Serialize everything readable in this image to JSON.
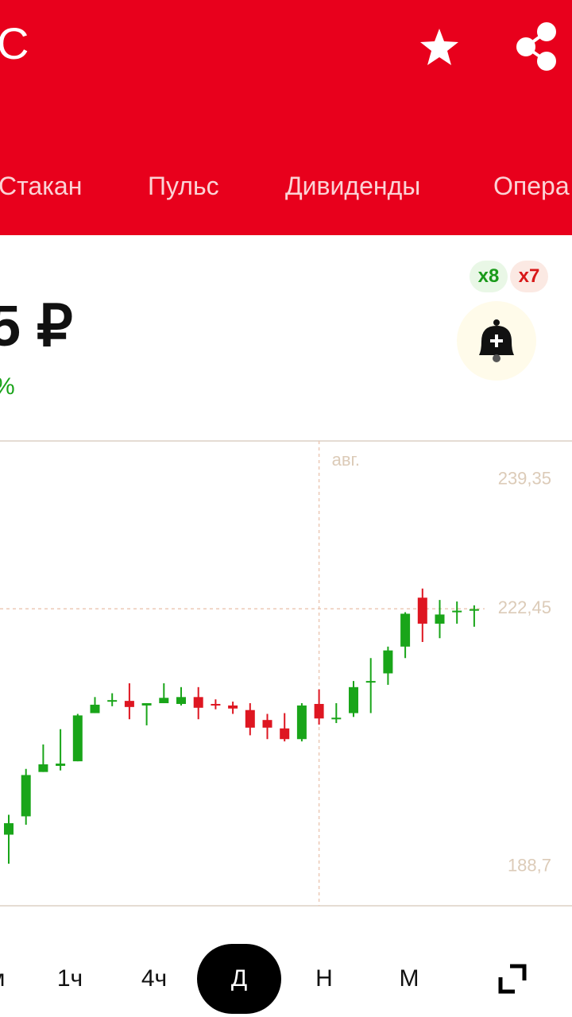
{
  "header": {
    "title": "С"
  },
  "tabs": [
    "Стакан",
    "Пульс",
    "Дивиденды",
    "Опера"
  ],
  "quote": {
    "price": "5 ₽",
    "change": "%"
  },
  "badges": [
    "x8",
    "x7"
  ],
  "chart_data": {
    "type": "candlestick",
    "categories": [
      null,
      null,
      null,
      null,
      null,
      null,
      null,
      null,
      null,
      null,
      null,
      null,
      null,
      null,
      null,
      null,
      null,
      null,
      "авг.",
      null,
      null,
      null,
      null,
      null,
      null,
      null,
      null,
      null
    ],
    "open": [
      192.9,
      195.3,
      201.1,
      201.9,
      202.5,
      208.8,
      210.4,
      210.4,
      209.8,
      210.1,
      210.0,
      210.9,
      210.0,
      209.8,
      209.2,
      207.9,
      206.8,
      205.4,
      210.0,
      208.1,
      208.8,
      212.9,
      214.0,
      217.5,
      223.9,
      220.5,
      222.1,
      222.3
    ],
    "high": [
      195.5,
      201.5,
      204.7,
      206.7,
      208.7,
      210.9,
      211.4,
      212.7,
      210.1,
      212.7,
      212.2,
      212.2,
      210.6,
      210.3,
      210.1,
      208.7,
      208.8,
      210.1,
      211.9,
      210.1,
      213.0,
      216.0,
      217.5,
      222.0,
      225.1,
      223.6,
      223.4,
      222.9
    ],
    "low": [
      189.1,
      194.2,
      201.1,
      201.3,
      202.5,
      208.8,
      209.7,
      208.0,
      207.2,
      210.1,
      209.8,
      208.0,
      209.3,
      208.7,
      205.9,
      205.4,
      205.1,
      205.1,
      207.3,
      207.5,
      208.3,
      208.8,
      212.5,
      216.0,
      218.1,
      218.6,
      220.5,
      220.1
    ],
    "close": [
      194.4,
      200.7,
      202.1,
      202.2,
      208.5,
      209.9,
      210.5,
      209.6,
      210.1,
      210.8,
      210.9,
      209.5,
      209.8,
      209.4,
      206.9,
      206.9,
      205.4,
      209.8,
      208.1,
      208.2,
      212.2,
      213.0,
      217.0,
      221.8,
      220.5,
      221.7,
      222.2,
      222.4
    ],
    "up_color": "#19a519",
    "down_color": "#de1621",
    "ylim": [
      183.6,
      244.4
    ],
    "yticks": [
      {
        "value": 239.35,
        "label": "239,35"
      },
      {
        "value": 188.7,
        "label": "188,7"
      }
    ],
    "last_price": {
      "value": 222.45,
      "label": "222,45"
    }
  },
  "timeframes": [
    "м",
    "1ч",
    "4ч",
    "Д",
    "Н",
    "М"
  ],
  "selected_timeframe": "Д"
}
